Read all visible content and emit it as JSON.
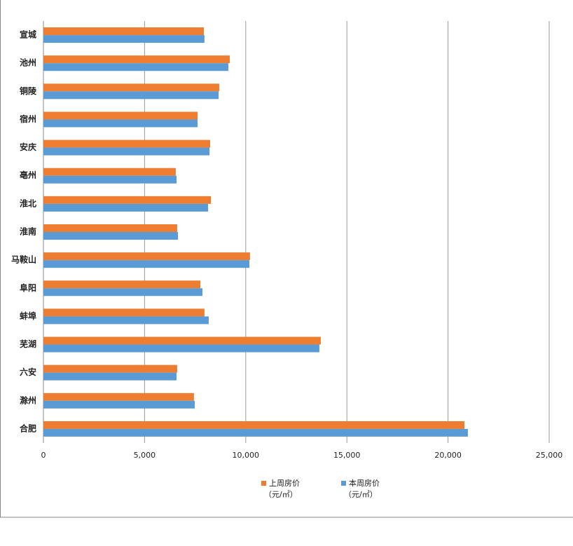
{
  "chart_data": {
    "type": "hbar",
    "categories": [
      "宣城",
      "池州",
      "铜陵",
      "宿州",
      "安庆",
      "亳州",
      "淮北",
      "淮南",
      "马鞍山",
      "阜阳",
      "蚌埠",
      "芜湖",
      "六安",
      "滁州",
      "合肥"
    ],
    "series": [
      {
        "name": "上周房价",
        "unit": "（元/㎡）",
        "color": "#ed7d31",
        "values": [
          7930,
          9210,
          8690,
          7620,
          8240,
          6540,
          8280,
          6610,
          10210,
          7760,
          7960,
          13710,
          6610,
          7440,
          20810
        ]
      },
      {
        "name": "本周房价",
        "unit": "（元/㎡）",
        "color": "#5b9bd5",
        "values": [
          7960,
          9140,
          8660,
          7620,
          8210,
          6580,
          8140,
          6650,
          10180,
          7860,
          8170,
          13640,
          6580,
          7480,
          20980
        ]
      }
    ],
    "xlim": [
      0,
      25000
    ],
    "xticks": [
      0,
      {
        "value": 5000,
        "label": "5,000"
      },
      {
        "value": 10000,
        "label": "10,000"
      },
      {
        "value": 15000,
        "label": "15,000"
      },
      {
        "value": 20000,
        "label": "20,000"
      },
      {
        "value": 25000,
        "label": "25,000"
      }
    ],
    "grid": true
  }
}
